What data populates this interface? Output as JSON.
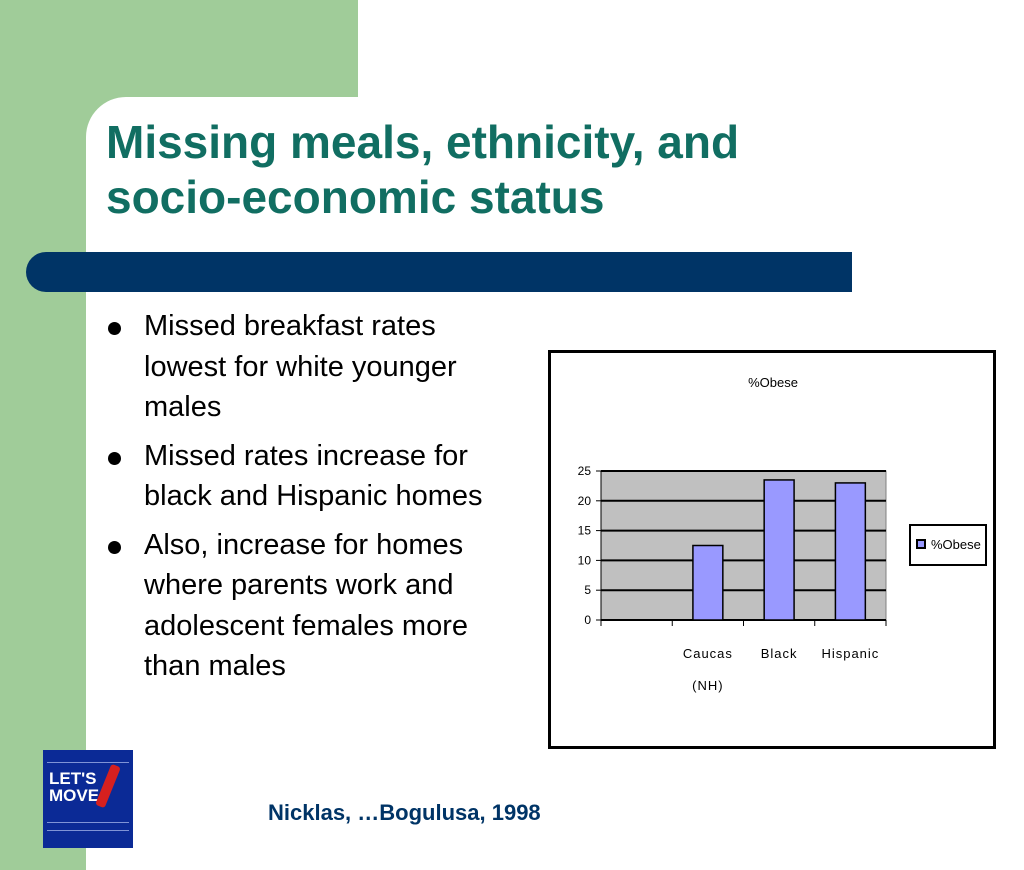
{
  "title": {
    "line1": "Missing meals, ethnicity, and",
    "line2": "socio-economic status"
  },
  "bullets": [
    "Missed breakfast rates lowest for white younger males",
    "Missed rates increase for black and Hispanic homes",
    "Also, increase for homes where parents work and adolescent females more than males"
  ],
  "citation": "Nicklas, …Bogulusa, 1998",
  "logo": {
    "line1": "LET'S",
    "line2": "MOVE"
  },
  "colors": {
    "title": "#116e62",
    "band": "#003466",
    "green": "#a0cc99",
    "bar": "#9999ff",
    "plot_bg": "#c0c0c0"
  },
  "chart_data": {
    "type": "bar",
    "title": "%Obese",
    "categories": [
      [
        "Caucas",
        "(NH)"
      ],
      [
        "Black"
      ],
      [
        "Hispanic"
      ]
    ],
    "series": [
      {
        "name": "%Obese",
        "values": [
          12.5,
          23.5,
          23
        ]
      }
    ],
    "yticks": [
      "0",
      "5",
      "10",
      "15",
      "20",
      "25"
    ],
    "ylim": [
      0,
      25
    ],
    "grid": true,
    "legend": "right"
  }
}
